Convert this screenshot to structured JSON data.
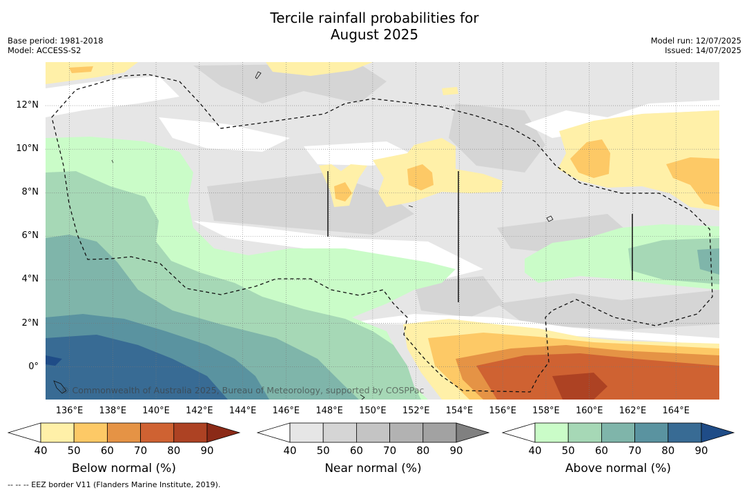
{
  "header": {
    "title_line1": "Tercile rainfall probabilities for",
    "title_line2": "August 2025",
    "base_period": "Base period: 1981-2018",
    "model": "Model: ACCESS-S2",
    "model_run": "Model run: 12/07/2025",
    "issued": "Issued: 14/07/2025"
  },
  "map": {
    "x_ticks": [
      "136°E",
      "138°E",
      "140°E",
      "142°E",
      "144°E",
      "146°E",
      "148°E",
      "150°E",
      "152°E",
      "154°E",
      "156°E",
      "158°E",
      "160°E",
      "162°E",
      "164°E"
    ],
    "y_ticks": [
      "12°N",
      "10°N",
      "8°N",
      "6°N",
      "4°N",
      "2°N",
      "0°"
    ],
    "lon_range": [
      134.9,
      166.0
    ],
    "lat_range": [
      -1.5,
      14.0
    ],
    "copyright": "© Commonwealth of Australia 2025, Bureau of Meteorology, supported by COSPPac"
  },
  "colorbars": [
    {
      "label": "Below normal (%)",
      "ticks": [
        "40",
        "50",
        "60",
        "70",
        "80",
        "90"
      ],
      "colors": [
        "#fff0a8",
        "#fdc966",
        "#e59345",
        "#cf6232",
        "#ad4223"
      ],
      "over_color": "#8b2a17"
    },
    {
      "label": "Near normal (%)",
      "ticks": [
        "40",
        "50",
        "60",
        "70",
        "80",
        "90"
      ],
      "colors": [
        "#e6e6e6",
        "#d5d5d5",
        "#c4c4c4",
        "#b2b2b2",
        "#a2a2a2"
      ],
      "over_color": "#808080"
    },
    {
      "label": "Above normal (%)",
      "ticks": [
        "40",
        "50",
        "60",
        "70",
        "80",
        "90"
      ],
      "colors": [
        "#cafcc8",
        "#a6d8b6",
        "#7fb5aa",
        "#5a93a0",
        "#386b94"
      ],
      "over_color": "#1f4c87"
    }
  ],
  "footnote": "--  --  -- EEZ border V11 (Flanders Marine Institute, 2019)."
}
